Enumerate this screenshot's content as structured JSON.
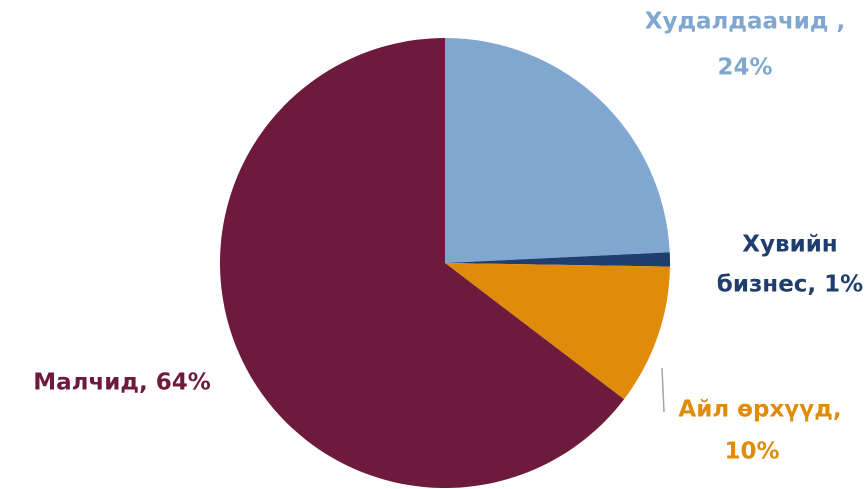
{
  "chart_data": {
    "type": "pie",
    "values": [
      24,
      1,
      10,
      64
    ],
    "labels": [
      [
        "Худалдаачид ,",
        "24%"
      ],
      [
        "Хувийн",
        "бизнес, 1%"
      ],
      [
        "Айл өрхүүд,",
        "10%"
      ],
      [
        "Малчид, 64%"
      ]
    ],
    "colors": [
      "#7fa7d0",
      "#1f3e6e",
      "#e08c0a",
      "#6e1a3c"
    ]
  }
}
